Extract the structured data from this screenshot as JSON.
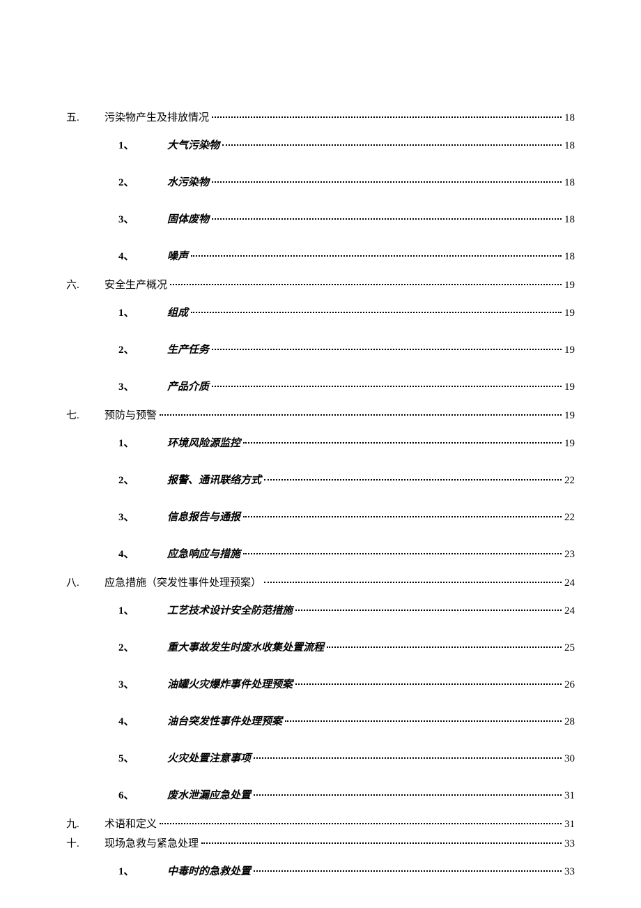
{
  "toc": {
    "sections": [
      {
        "num": "五.",
        "title": "污染物产生及排放情况",
        "page": "18",
        "subs": [
          {
            "num": "1、",
            "title": "大气污染物",
            "page": "18"
          },
          {
            "num": "2、",
            "title": "水污染物",
            "page": "18"
          },
          {
            "num": "3、",
            "title": "固体废物",
            "page": "18"
          },
          {
            "num": "4、",
            "title": "噪声",
            "page": "18"
          }
        ]
      },
      {
        "num": "六.",
        "title": "安全生产概况",
        "page": "19",
        "subs": [
          {
            "num": "1、",
            "title": "组成",
            "page": "19"
          },
          {
            "num": "2、",
            "title": "生产任务",
            "page": "19"
          },
          {
            "num": "3、",
            "title": "产品介质",
            "page": "19"
          }
        ]
      },
      {
        "num": "七.",
        "title": "预防与预警",
        "page": "19",
        "subs": [
          {
            "num": "1、",
            "title": "环境风险源监控",
            "page": "19"
          },
          {
            "num": "2、",
            "title": "报警、通讯联络方式",
            "page": "22"
          },
          {
            "num": "3、",
            "title": "信息报告与通报",
            "page": "22"
          },
          {
            "num": "4、",
            "title": "应急响应与措施",
            "page": "23"
          }
        ]
      },
      {
        "num": "八.",
        "title": "应急措施（突发性事件处理预案）",
        "page": "24",
        "subs": [
          {
            "num": "1、",
            "title": "工艺技术设计安全防范措施",
            "page": "24"
          },
          {
            "num": "2、",
            "title": "重大事故发生时废水收集处置流程",
            "page": "25"
          },
          {
            "num": "3、",
            "title": "油罐火灾爆炸事件处理预案",
            "page": "26"
          },
          {
            "num": "4、",
            "title": "油台突发性事件处理预案",
            "page": "28"
          },
          {
            "num": "5、",
            "title": "火灾处置注意事项",
            "page": "30"
          },
          {
            "num": "6、",
            "title": "废水泄漏应急处置",
            "page": "31"
          }
        ]
      },
      {
        "num": "九.",
        "title": "术语和定义",
        "page": "31",
        "subs": []
      },
      {
        "num": "十.",
        "title": "现场急救与紧急处理",
        "page": "33",
        "subs": [
          {
            "num": "1、",
            "title": "中毒时的急救处置",
            "page": "33"
          }
        ]
      }
    ]
  }
}
